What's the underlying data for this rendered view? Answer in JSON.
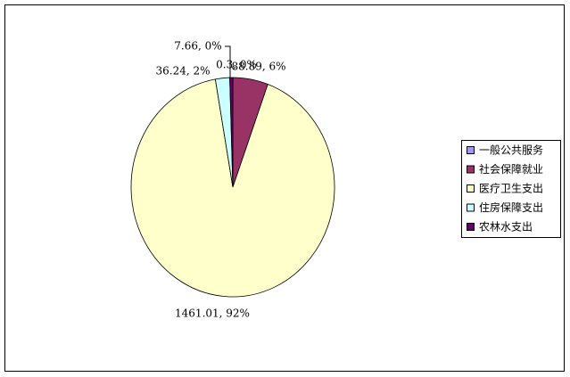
{
  "chart_data": {
    "type": "pie",
    "categories": [
      "一般公共服务",
      "社会保障就业",
      "医疗卫生支出",
      "住房保障支出",
      "农林水支出"
    ],
    "values": [
      0.3,
      88.89,
      1461.01,
      36.24,
      7.66
    ],
    "value_labels": [
      "0.3, 0%",
      "88.89, 6%",
      "1461.01, 92%",
      "36.24, 2%",
      "7.66, 0%"
    ],
    "colors": [
      "#9999ff",
      "#993366",
      "#ffffcc",
      "#ccffff",
      "#660066"
    ],
    "legend": "right"
  }
}
